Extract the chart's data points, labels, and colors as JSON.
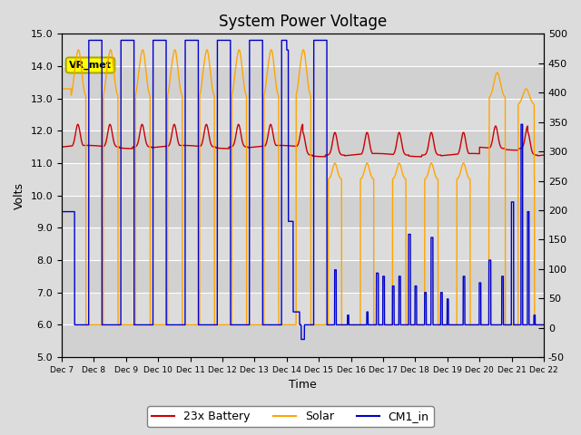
{
  "title": "System Power Voltage",
  "xlabel": "Time",
  "ylabel": "Volts",
  "ylim_left": [
    5.0,
    15.0
  ],
  "ylim_right": [
    -50,
    500
  ],
  "yticks_left": [
    5.0,
    6.0,
    7.0,
    8.0,
    9.0,
    10.0,
    11.0,
    12.0,
    13.0,
    14.0,
    15.0
  ],
  "yticks_right": [
    -50,
    0,
    50,
    100,
    150,
    200,
    250,
    300,
    350,
    400,
    450,
    500
  ],
  "xtick_labels": [
    "Dec 7",
    "Dec 8",
    "Dec 9",
    "Dec 10",
    "Dec 11",
    "Dec 12",
    "Dec 13",
    "Dec 14",
    "Dec 15",
    "Dec 16",
    "Dec 17",
    "Dec 18",
    "Dec 19",
    "Dec 20",
    "Dec 21",
    "Dec 22"
  ],
  "background_color": "#dcdcdc",
  "grid_color": "#ffffff",
  "annotation_box_text": "VR_met",
  "annotation_box_color": "#ffff00",
  "annotation_box_edge": "#aaaa00",
  "legend_labels": [
    "23x Battery",
    "Solar",
    "CM1_in"
  ],
  "battery_color": "#cc0000",
  "solar_color": "#ffa500",
  "cm1_color": "#0000cc",
  "title_fontsize": 12,
  "axis_label_fontsize": 9,
  "tick_fontsize": 8
}
